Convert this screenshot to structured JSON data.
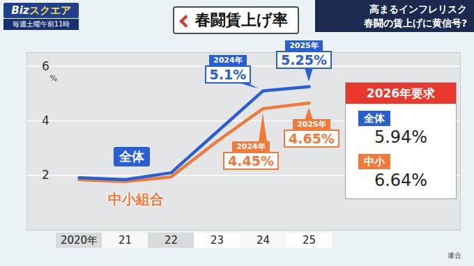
{
  "chart_data": {
    "type": "line",
    "title": "春闘賃上げ率",
    "categories": [
      "2020年",
      "21",
      "22",
      "23",
      "24",
      "25"
    ],
    "ylim": [
      0,
      6.5
    ],
    "yticks": [
      2,
      4,
      6
    ],
    "ylabel": "%",
    "grid": true,
    "series": [
      {
        "name": "全体",
        "color": "#2860d4",
        "values": [
          1.92,
          1.85,
          2.1,
          3.6,
          5.1,
          5.25
        ]
      },
      {
        "name": "中小組合",
        "color": "#f07a3a",
        "values": [
          1.85,
          1.78,
          1.95,
          3.25,
          4.45,
          4.65
        ]
      }
    ],
    "annotations": [
      {
        "series": "全体",
        "category": "24",
        "title": "2024年",
        "label": "5.1%"
      },
      {
        "series": "全体",
        "category": "25",
        "title": "2025年",
        "label": "5.25%"
      },
      {
        "series": "中小組合",
        "category": "24",
        "title": "2024年",
        "label": "4.45%"
      },
      {
        "series": "中小組合",
        "category": "25",
        "title": "2025年",
        "label": "4.65%"
      }
    ],
    "requests": {
      "title": "2026年要求",
      "color": "#e8382e",
      "items": [
        {
          "name": "全体",
          "color": "#2860d4",
          "value": 5.94,
          "label": "5.94%"
        },
        {
          "name": "中小",
          "color": "#f07a3a",
          "value": 6.64,
          "label": "6.64%"
        }
      ]
    },
    "source": "連合"
  },
  "broadcast": {
    "logo": [
      "Biz",
      "スクエア"
    ],
    "schedule": "毎週土曜午前11時",
    "headline": [
      "高まるインフレリスク",
      "春闘の賃上げに黄信号?"
    ]
  }
}
